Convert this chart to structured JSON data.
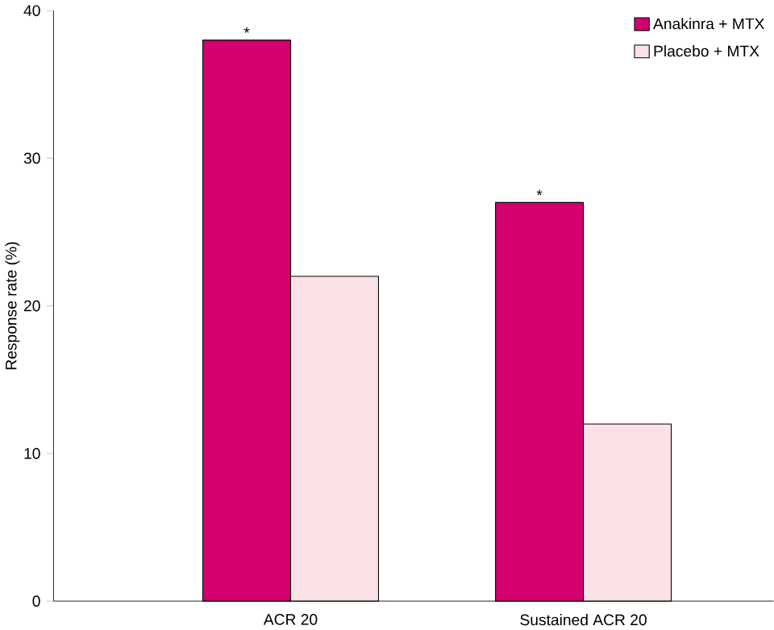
{
  "chart_data": {
    "type": "bar",
    "ylabel": "Response rate (%)",
    "categories": [
      "ACR 20",
      "Sustained ACR 20"
    ],
    "series": [
      {
        "name": "Anakinra + MTX",
        "color": "#d4006e",
        "values": [
          38,
          27
        ]
      },
      {
        "name": "Placebo + MTX",
        "color": "#fae1e5",
        "values": [
          22,
          12
        ]
      }
    ],
    "ylim": [
      0,
      40
    ],
    "yticks": [
      0,
      10,
      20,
      30,
      40
    ],
    "legend": "top right",
    "annotations": [
      {
        "text": "*",
        "x": "ACR 20",
        "y": 38
      },
      {
        "text": "*",
        "x": "Sustained ACR 20",
        "y": 27
      }
    ]
  }
}
